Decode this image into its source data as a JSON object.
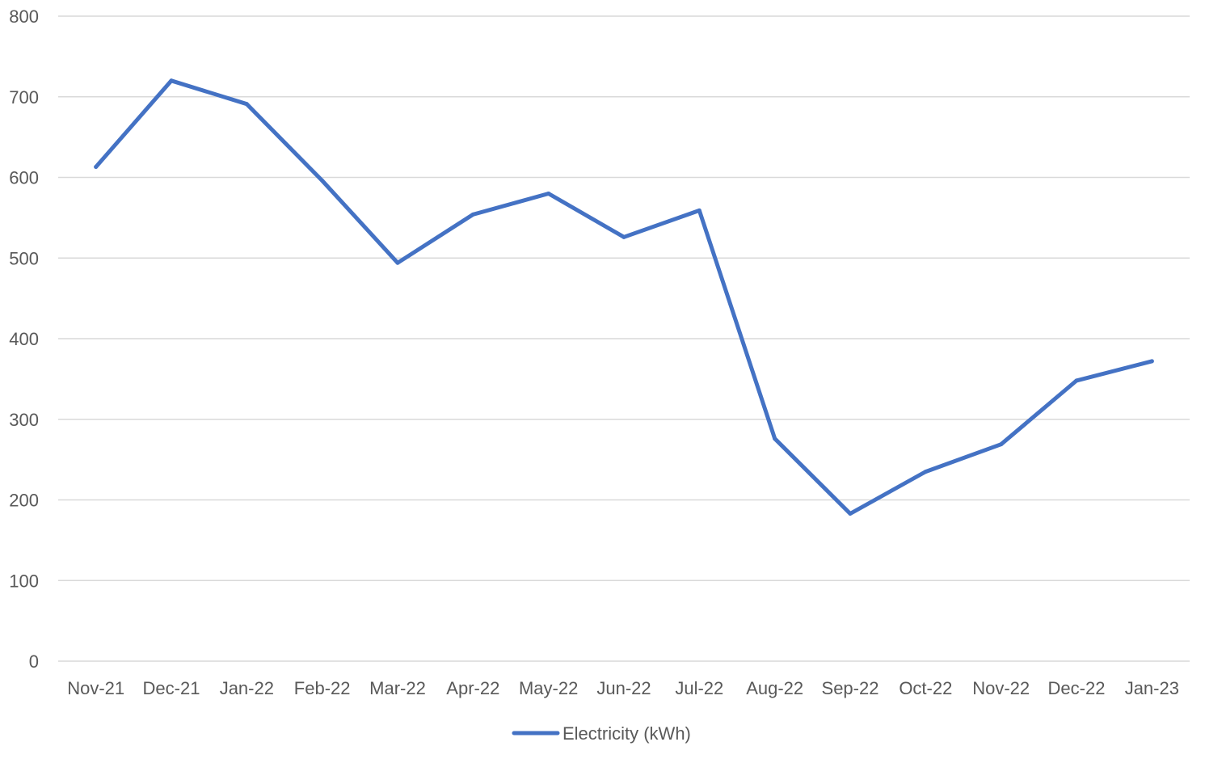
{
  "chart_data": {
    "type": "line",
    "title": "",
    "xlabel": "",
    "ylabel": "",
    "categories": [
      "Nov-21",
      "Dec-21",
      "Jan-22",
      "Feb-22",
      "Mar-22",
      "Apr-22",
      "May-22",
      "Jun-22",
      "Jul-22",
      "Aug-22",
      "Sep-22",
      "Oct-22",
      "Nov-22",
      "Dec-22",
      "Jan-23"
    ],
    "series": [
      {
        "name": "Electricity (kWh)",
        "color": "#4472C4",
        "values": [
          613,
          720,
          691,
          596,
          494,
          554,
          580,
          526,
          559,
          276,
          183,
          235,
          269,
          348,
          372
        ]
      }
    ],
    "ylim": [
      0,
      800
    ],
    "yticks": [
      0,
      100,
      200,
      300,
      400,
      500,
      600,
      700,
      800
    ],
    "ytick_labels": [
      "0",
      "100",
      "200",
      "300",
      "400",
      "500",
      "600",
      "700",
      "800"
    ],
    "grid": true,
    "gridline_color": "#d9d9d9",
    "legend_position": "bottom",
    "legend_label": "Electricity (kWh)"
  }
}
